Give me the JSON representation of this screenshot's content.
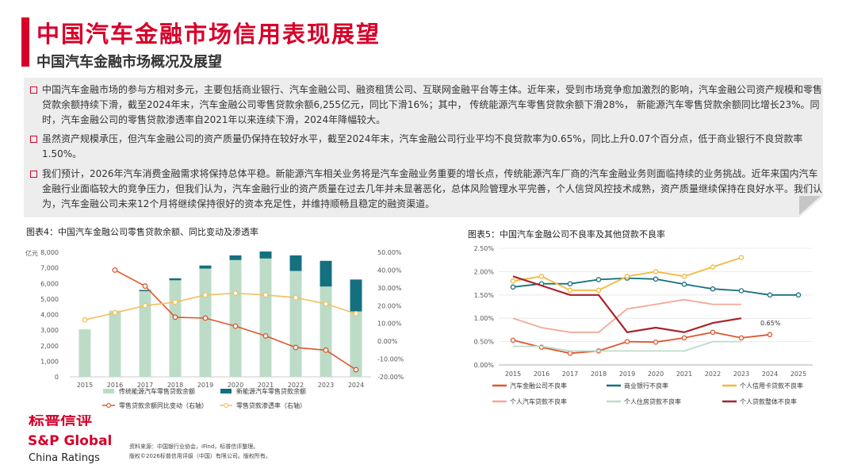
{
  "header": {
    "title": "中国汽车金融市场信用表现展望",
    "subtitle": "中国汽车金融市场概况及展望"
  },
  "summary": {
    "bullets": [
      "中国汽车金融市场的参与方相对多元，主要包括商业银行、汽车金融公司、融资租赁公司、互联网金融平台等主体。近年来，受到市场竞争愈加激烈的影响，汽车金融公司资产规模和零售贷款余额持续下滑，截至2024年末，汽车金融公司零售贷款余额6,255亿元，同比下滑16%；其中， 传统能源汽车零售贷款余额下滑28%， 新能源汽车零售贷款余额同比增长23%。同时，汽车金融公司的零售贷款渗透率自2021年以来连续下滑，2024年降幅较大。",
      "虽然资产规模承压，但汽车金融公司的资产质量仍保持在较好水平，截至2024年末，汽车金融公司行业平均不良贷款率为0.65%，同比上升0.07个百分点，低于商业银行不良贷款率1.50%。",
      "我们预计，2026年汽车消费金融需求将保持总体平稳。新能源汽车相关业务将是汽车金融业务重要的增长点，传统能源汽车厂商的汽车金融业务则面临持续的业务挑战。近年来国内汽车金融行业面临较大的竞争压力，但我们认为，汽车金融行业的资产质量在过去几年并未显著恶化，总体风险管理水平完善，个人信贷风控技术成熟，资产质量继续保持在良好水平。我们认为，汽车金融公司未来12个月将继续保持很好的资本充足性，并维持顺畅且稳定的融资渠道。"
    ]
  },
  "colors": {
    "accent": "#d6002a",
    "traditional": "#bcdcc8",
    "nev": "#14707f",
    "yoy": "#e0552c",
    "penetration": "#f0c060",
    "bank": "#16707e",
    "card": "#f2b93c",
    "auto": "#f4a898",
    "mortgage": "#bcdcc8",
    "overall": "#a8222c"
  },
  "chart_data": [
    {
      "type": "bar",
      "title": "图表4：中国汽车金融公司零售贷款余额、同比变动及渗透率",
      "ylabel": "亿元",
      "categories": [
        "2015",
        "2016",
        "2017",
        "2018",
        "2019",
        "2020",
        "2021",
        "2022",
        "2023",
        "2024"
      ],
      "ylim": [
        0,
        8000
      ],
      "y_ticks": [
        "0",
        "1,000",
        "2,000",
        "3,000",
        "4,000",
        "5,000",
        "6,000",
        "7,000",
        "8,000"
      ],
      "y2lim": [
        -20,
        50
      ],
      "y2_ticks": [
        "-20.00%",
        "-10.00%",
        "0.00%",
        "10.00%",
        "20.00%",
        "30.00%",
        "40.00%",
        "50.00%"
      ],
      "series": [
        {
          "name": "传统能源汽车零售贷款余额",
          "kind": "bar",
          "stack": "balance",
          "values": [
            3050,
            4250,
            5500,
            6200,
            6950,
            7500,
            7600,
            6800,
            5800,
            4200
          ]
        },
        {
          "name": "新能源汽车零售贷款余额",
          "kind": "bar",
          "stack": "balance",
          "values": [
            0,
            0,
            80,
            130,
            200,
            300,
            450,
            1000,
            1650,
            2050
          ]
        },
        {
          "name": "零售贷款余额同比变动（右轴）",
          "kind": "line",
          "axis": "right",
          "values": [
            null,
            40,
            31,
            13.5,
            13,
            8.5,
            3,
            -3.5,
            -5,
            -16
          ]
        },
        {
          "name": "零售贷款渗透率（右轴）",
          "kind": "line",
          "axis": "right",
          "values": [
            12,
            16,
            20,
            22,
            26,
            27,
            26,
            24.5,
            21,
            15.5
          ]
        }
      ]
    },
    {
      "type": "line",
      "title": "图表5：中国汽车金融公司不良率及其他贷款不良率",
      "categories": [
        "2015",
        "2016",
        "2017",
        "2018",
        "2019",
        "2020",
        "2021",
        "2022",
        "2023",
        "2024",
        "2025"
      ],
      "ylim": [
        0,
        2.5
      ],
      "y_ticks": [
        "0.00%",
        "0.50%",
        "1.00%",
        "1.50%",
        "2.00%",
        "2.50%"
      ],
      "annotation": "0.65%",
      "series": [
        {
          "name": "汽车金融公司不良率",
          "values": [
            0.53,
            0.38,
            0.25,
            0.3,
            0.5,
            0.49,
            0.58,
            0.7,
            0.58,
            0.65,
            null
          ]
        },
        {
          "name": "商业银行不良率",
          "values": [
            1.67,
            1.74,
            1.74,
            1.83,
            1.86,
            1.84,
            1.73,
            1.63,
            1.59,
            1.5,
            1.5
          ]
        },
        {
          "name": "个人信用卡贷款不良率",
          "values": [
            1.8,
            1.9,
            1.6,
            1.6,
            1.9,
            2.0,
            1.9,
            2.1,
            2.3,
            null,
            null
          ]
        },
        {
          "name": "个人汽车贷款不良率",
          "values": [
            1.0,
            0.8,
            0.7,
            0.7,
            1.2,
            1.3,
            1.4,
            1.3,
            1.3,
            null,
            null
          ]
        },
        {
          "name": "个人住房贷款不良率",
          "values": [
            0.4,
            0.4,
            0.3,
            0.3,
            0.3,
            0.3,
            0.3,
            0.5,
            0.5,
            null,
            null
          ]
        },
        {
          "name": "个人贷款整体不良率",
          "values": [
            1.9,
            1.7,
            1.5,
            1.5,
            0.7,
            0.8,
            0.7,
            0.9,
            1.0,
            null,
            null
          ]
        }
      ]
    }
  ],
  "footer": {
    "logo_cn": "标普信评",
    "logo_en": "S&P Global",
    "logo_sub": "China Ratings",
    "source_line1": "资料来源：中国银行业协会，iFind，标普信评整理。",
    "source_line2": "版权©2026标普信用评级（中国）有限公司。版权所有。"
  }
}
